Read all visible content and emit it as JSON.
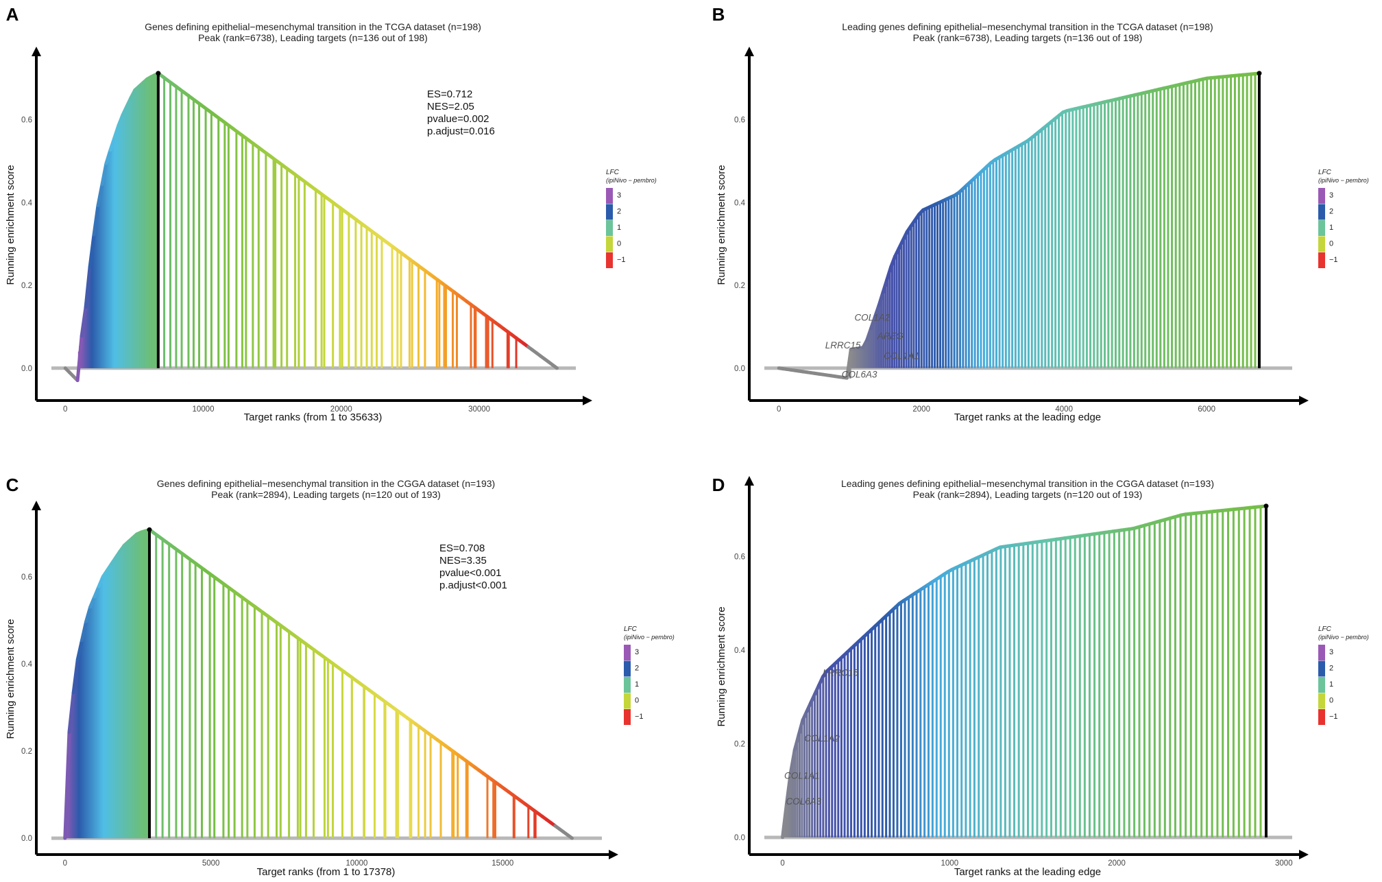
{
  "chart_data": [
    {
      "panel": "A",
      "type": "line",
      "title_line1": "Genes defining epithelial−mesenchymal transition in the TCGA dataset (n=198)",
      "title_line2": "Peak (rank=6738), Leading targets (n=136 out of 198)",
      "xlabel": "Target ranks (from 1 to 35633)",
      "ylabel": "Running enrichment score",
      "xlim": [
        -1500,
        37000
      ],
      "ylim": [
        -0.065,
        0.74
      ],
      "xticks": [
        0,
        10000,
        20000,
        30000
      ],
      "yticks": [
        0.0,
        0.2,
        0.4,
        0.6
      ],
      "stats": [
        "ES=0.712",
        "NES=2.05",
        "pvalue=0.002",
        "p.adjust=0.016"
      ],
      "peak": {
        "x": 6738,
        "y": 0.712
      },
      "n_genes": 198,
      "curve": [
        [
          0,
          0
        ],
        [
          900,
          -0.03
        ],
        [
          1000,
          0.04
        ],
        [
          1400,
          0.12
        ],
        [
          1800,
          0.25
        ],
        [
          2300,
          0.38
        ],
        [
          3000,
          0.5
        ],
        [
          4000,
          0.6
        ],
        [
          5000,
          0.67
        ],
        [
          6000,
          0.7
        ],
        [
          6738,
          0.712
        ],
        [
          35633,
          0.0
        ]
      ],
      "ranks_range": [
        1000,
        33600
      ],
      "legend": {
        "title": "LFC",
        "subtitle": "(ipiNivo − pembro)",
        "values": [
          "3",
          "2",
          "1",
          "0",
          "−1"
        ],
        "colors": [
          "#9b59b6",
          "#2b5bab",
          "#6cc49a",
          "#c4d63a",
          "#e8332f"
        ]
      },
      "gene_labels": []
    },
    {
      "panel": "B",
      "type": "line",
      "title_line1": "Leading genes defining epithelial−mesenchymal transition in the TCGA dataset  (n=198)",
      "title_line2": "Peak (rank=6738), Leading targets (n=136 out of 198)",
      "xlabel": "Target ranks at the leading edge",
      "ylabel": "Running enrichment score",
      "xlim": [
        -300,
        7200
      ],
      "ylim": [
        -0.065,
        0.74
      ],
      "xticks": [
        0,
        2000,
        4000,
        6000
      ],
      "yticks": [
        0.0,
        0.2,
        0.4,
        0.6
      ],
      "stats": [],
      "peak": {
        "x": 6738,
        "y": 0.712
      },
      "n_genes": 136,
      "curve": [
        [
          0,
          0
        ],
        [
          1000,
          -0.025
        ],
        [
          1000,
          0.045
        ],
        [
          1200,
          0.05
        ],
        [
          1400,
          0.15
        ],
        [
          1600,
          0.26
        ],
        [
          1800,
          0.33
        ],
        [
          2000,
          0.38
        ],
        [
          2500,
          0.42
        ],
        [
          3000,
          0.5
        ],
        [
          3500,
          0.55
        ],
        [
          4000,
          0.62
        ],
        [
          5000,
          0.66
        ],
        [
          6000,
          0.7
        ],
        [
          6738,
          0.712
        ]
      ],
      "ranks_range": [
        1000,
        6738
      ],
      "legend": {
        "title": "LFC",
        "subtitle": "(ipiNivo − pembro)",
        "values": [
          "3",
          "2",
          "1",
          "0",
          "−1"
        ],
        "colors": [
          "#9b59b6",
          "#2b5bab",
          "#6cc49a",
          "#c4d63a",
          "#e8332f"
        ]
      },
      "gene_labels": [
        {
          "text": "COL1A2",
          "x": 1060,
          "y": 0.115
        },
        {
          "text": "AREG",
          "x": 1380,
          "y": 0.07
        },
        {
          "text": "LRRC15",
          "x": 650,
          "y": 0.048
        },
        {
          "text": "COL1A1",
          "x": 1470,
          "y": 0.022
        },
        {
          "text": "COL6A3",
          "x": 880,
          "y": -0.023
        }
      ]
    },
    {
      "panel": "C",
      "type": "line",
      "title_line1": "Genes defining epithelial−mesenchymal transition in the CGGA dataset (n=193)",
      "title_line2": "Peak (rank=2894), Leading targets (n=120 out of 193)",
      "xlabel": "Target ranks (from 1 to 17378)",
      "ylabel": "Running enrichment score",
      "xlim": [
        -700,
        18400
      ],
      "ylim": [
        -0.025,
        0.74
      ],
      "xticks": [
        0,
        5000,
        10000,
        15000
      ],
      "yticks": [
        0.0,
        0.2,
        0.4,
        0.6
      ],
      "stats": [
        "ES=0.708",
        "NES=3.35",
        "pvalue<0.001",
        "p.adjust<0.001"
      ],
      "peak": {
        "x": 2894,
        "y": 0.708
      },
      "n_genes": 193,
      "curve": [
        [
          0,
          0
        ],
        [
          40,
          0.1
        ],
        [
          150,
          0.25
        ],
        [
          400,
          0.4
        ],
        [
          800,
          0.52
        ],
        [
          1300,
          0.6
        ],
        [
          2000,
          0.67
        ],
        [
          2500,
          0.7
        ],
        [
          2894,
          0.708
        ],
        [
          17378,
          0.0
        ]
      ],
      "ranks_range": [
        0,
        16800
      ],
      "legend": {
        "title": "LFC",
        "subtitle": "(ipiNivo − pembro)",
        "values": [
          "3",
          "2",
          "1",
          "0",
          "−1"
        ],
        "colors": [
          "#9b59b6",
          "#2b5bab",
          "#6cc49a",
          "#c4d63a",
          "#e8332f"
        ]
      },
      "gene_labels": []
    },
    {
      "panel": "D",
      "type": "line",
      "title_line1": "Leading genes defining epithelial−mesenchymal transition in the CGGA dataset (n=193)",
      "title_line2": "Peak (rank=2894), Leading targets (n=120 out of 193)",
      "xlabel": "Target ranks at the leading edge",
      "ylabel": "Running enrichment score",
      "xlim": [
        -150,
        3050
      ],
      "ylim": [
        -0.025,
        0.74
      ],
      "xticks": [
        0,
        1000,
        2000,
        3000
      ],
      "yticks": [
        0.0,
        0.2,
        0.4,
        0.6
      ],
      "stats": [],
      "peak": {
        "x": 2894,
        "y": 0.708
      },
      "n_genes": 120,
      "curve": [
        [
          0,
          0
        ],
        [
          20,
          0.06
        ],
        [
          60,
          0.17
        ],
        [
          120,
          0.25
        ],
        [
          250,
          0.35
        ],
        [
          400,
          0.4
        ],
        [
          700,
          0.5
        ],
        [
          1000,
          0.57
        ],
        [
          1300,
          0.62
        ],
        [
          1700,
          0.64
        ],
        [
          2100,
          0.66
        ],
        [
          2400,
          0.69
        ],
        [
          2894,
          0.708
        ]
      ],
      "ranks_range": [
        0,
        2894
      ],
      "legend": {
        "title": "LFC",
        "subtitle": "(ipiNivo − pembro)",
        "values": [
          "3",
          "2",
          "1",
          "0",
          "−1"
        ],
        "colors": [
          "#9b59b6",
          "#2b5bab",
          "#6cc49a",
          "#c4d63a",
          "#e8332f"
        ]
      },
      "gene_labels": [
        {
          "text": "LRRC15",
          "x": 240,
          "y": 0.345
        },
        {
          "text": "COL1A2",
          "x": 130,
          "y": 0.205
        },
        {
          "text": "COL1A1",
          "x": 10,
          "y": 0.125
        },
        {
          "text": "COL6A3",
          "x": 20,
          "y": 0.07
        }
      ]
    }
  ]
}
